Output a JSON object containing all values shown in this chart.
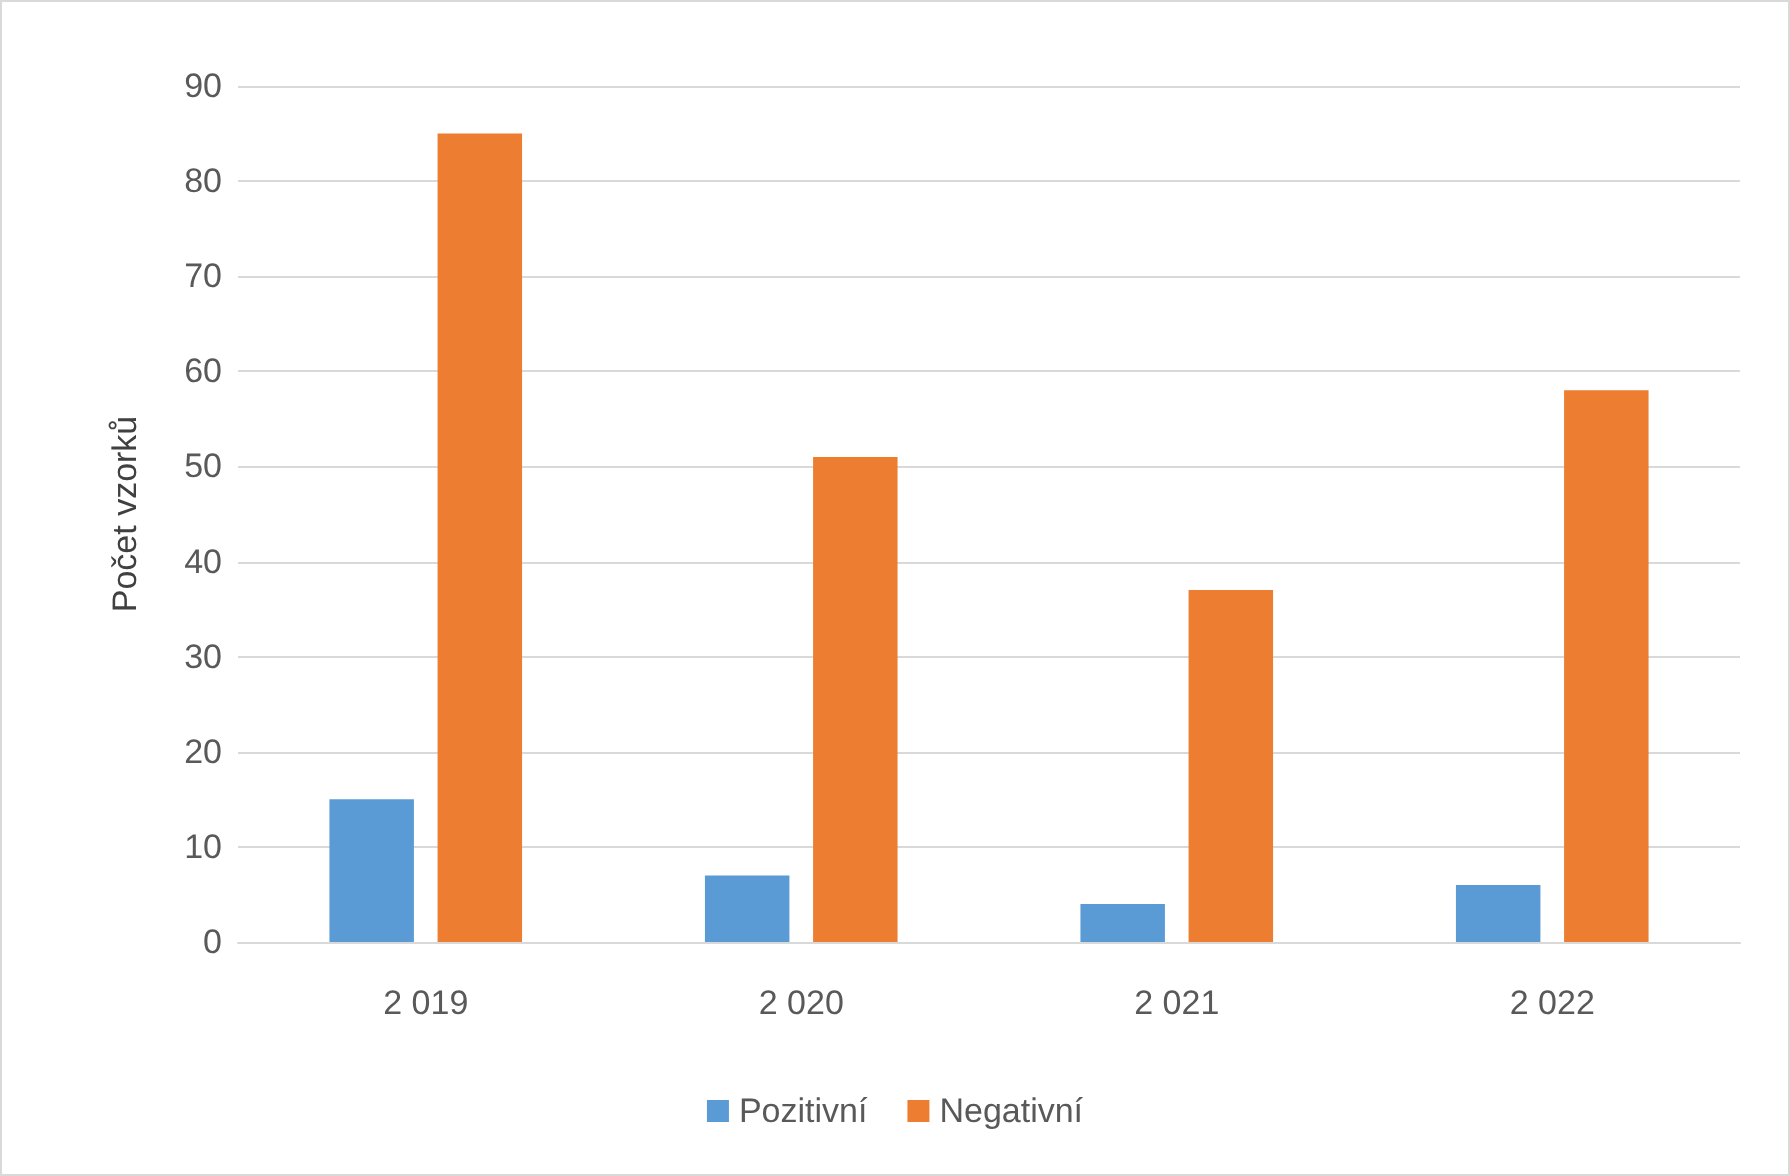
{
  "chart_data": {
    "type": "bar",
    "ylabel": "Počet vzorků",
    "categories": [
      "2 019",
      "2 020",
      "2 021",
      "2 022"
    ],
    "series": [
      {
        "name": "Pozitivní",
        "color": "#5b9bd5",
        "values": [
          15,
          7,
          4,
          6
        ]
      },
      {
        "name": "Negativní",
        "color": "#ed7d31",
        "values": [
          85,
          51,
          37,
          58
        ]
      }
    ],
    "ylim": [
      0,
      90
    ],
    "yticks": [
      0,
      10,
      20,
      30,
      40,
      50,
      60,
      70,
      80,
      90
    ],
    "grid": "y",
    "legend": "bottom"
  }
}
